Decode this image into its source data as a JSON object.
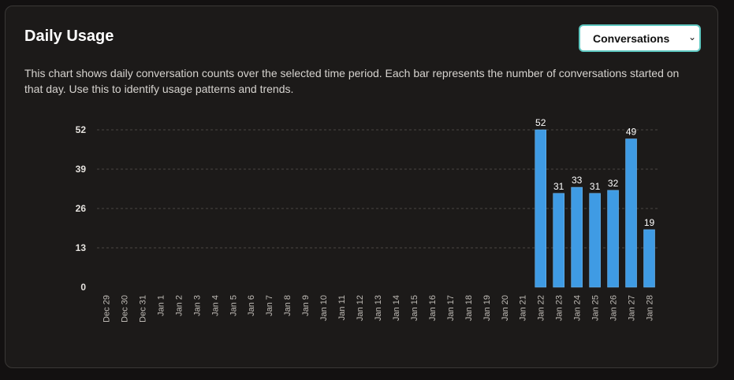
{
  "panel": {
    "title": "Daily Usage",
    "metric_select": {
      "selected": "Conversations",
      "options": [
        "Conversations"
      ]
    },
    "description": "This chart shows daily conversation counts over the selected time period. Each bar represents the number of conversations started on that day. Use this to identify usage patterns and trends."
  },
  "colors": {
    "bar": "#3f9be4",
    "bar_edge": "#6fb6ec",
    "grid": "#4a4744",
    "accent_border": "#5ec7c0"
  },
  "chart_data": {
    "type": "bar",
    "categories": [
      "Dec 29",
      "Dec 30",
      "Dec 31",
      "Jan 1",
      "Jan 2",
      "Jan 3",
      "Jan 4",
      "Jan 5",
      "Jan 6",
      "Jan 7",
      "Jan 8",
      "Jan 9",
      "Jan 10",
      "Jan 11",
      "Jan 12",
      "Jan 13",
      "Jan 14",
      "Jan 15",
      "Jan 16",
      "Jan 17",
      "Jan 18",
      "Jan 19",
      "Jan 20",
      "Jan 21",
      "Jan 22",
      "Jan 23",
      "Jan 24",
      "Jan 25",
      "Jan 26",
      "Jan 27",
      "Jan 28"
    ],
    "values": [
      0,
      0,
      0,
      0,
      0,
      0,
      0,
      0,
      0,
      0,
      0,
      0,
      0,
      0,
      0,
      0,
      0,
      0,
      0,
      0,
      0,
      0,
      0,
      0,
      52,
      31,
      33,
      31,
      32,
      49,
      19
    ],
    "yticks": [
      0,
      13,
      26,
      39,
      52
    ],
    "ylim": [
      0,
      52
    ],
    "grid": true,
    "data_labels": true,
    "legend": "none"
  }
}
